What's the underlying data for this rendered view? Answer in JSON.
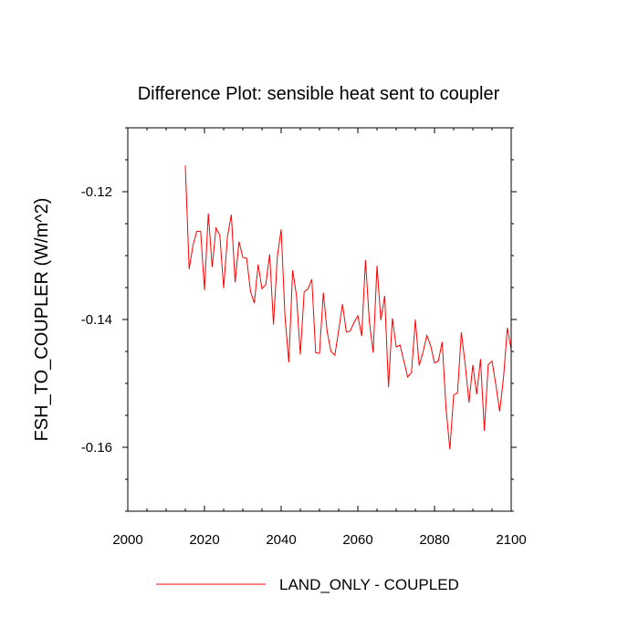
{
  "chart_data": {
    "type": "line",
    "title": "Difference Plot: sensible heat sent to coupler",
    "xlabel": "",
    "ylabel": "FSH_TO_COUPLER  (W/m^2)",
    "xlim": [
      2000,
      2100
    ],
    "ylim": [
      -0.17,
      -0.11
    ],
    "x_ticks": [
      2000,
      2020,
      2040,
      2060,
      2080,
      2100
    ],
    "x_tick_labels": [
      "2000",
      "2020",
      "2040",
      "2060",
      "2080",
      "2100"
    ],
    "y_ticks": [
      -0.12,
      -0.14,
      -0.16
    ],
    "y_tick_labels": [
      "-0.12",
      "-0.14",
      "-0.16"
    ],
    "grid": false,
    "legend_position": "bottom",
    "series": [
      {
        "name": "LAND_ONLY - COUPLED",
        "color": "#ff0000",
        "x": [
          2015,
          2016,
          2017,
          2018,
          2019,
          2020,
          2021,
          2022,
          2023,
          2024,
          2025,
          2026,
          2027,
          2028,
          2029,
          2030,
          2031,
          2032,
          2033,
          2034,
          2035,
          2036,
          2037,
          2038,
          2039,
          2040,
          2041,
          2042,
          2043,
          2044,
          2045,
          2046,
          2047,
          2048,
          2049,
          2050,
          2051,
          2052,
          2053,
          2054,
          2055,
          2056,
          2057,
          2058,
          2059,
          2060,
          2061,
          2062,
          2063,
          2064,
          2065,
          2066,
          2067,
          2068,
          2069,
          2070,
          2071,
          2072,
          2073,
          2074,
          2075,
          2076,
          2077,
          2078,
          2079,
          2080,
          2081,
          2082,
          2083,
          2084,
          2085,
          2086,
          2087,
          2088,
          2089,
          2090,
          2091,
          2092,
          2093,
          2094,
          2095,
          2096,
          2097,
          2098,
          2099,
          2100
        ],
        "y": [
          -0.1159,
          -0.1321,
          -0.1284,
          -0.1262,
          -0.1262,
          -0.1354,
          -0.1234,
          -0.1318,
          -0.1257,
          -0.1268,
          -0.1351,
          -0.127,
          -0.1236,
          -0.1342,
          -0.1278,
          -0.1303,
          -0.1304,
          -0.1356,
          -0.1374,
          -0.1314,
          -0.1352,
          -0.1345,
          -0.1298,
          -0.1408,
          -0.1302,
          -0.1259,
          -0.1395,
          -0.1467,
          -0.1323,
          -0.1363,
          -0.1455,
          -0.1357,
          -0.1352,
          -0.1337,
          -0.1452,
          -0.1453,
          -0.1358,
          -0.1419,
          -0.145,
          -0.1456,
          -0.1417,
          -0.1376,
          -0.142,
          -0.1418,
          -0.1405,
          -0.1394,
          -0.1426,
          -0.1307,
          -0.1403,
          -0.1452,
          -0.1316,
          -0.1401,
          -0.1363,
          -0.1506,
          -0.1398,
          -0.1443,
          -0.144,
          -0.1465,
          -0.149,
          -0.1483,
          -0.14,
          -0.1472,
          -0.1451,
          -0.1425,
          -0.1441,
          -0.1468,
          -0.1465,
          -0.1435,
          -0.1539,
          -0.1603,
          -0.1518,
          -0.1515,
          -0.142,
          -0.147,
          -0.153,
          -0.1471,
          -0.1517,
          -0.1462,
          -0.1574,
          -0.1471,
          -0.1465,
          -0.1502,
          -0.1544,
          -0.1491,
          -0.1413,
          -0.1447
        ]
      }
    ]
  }
}
